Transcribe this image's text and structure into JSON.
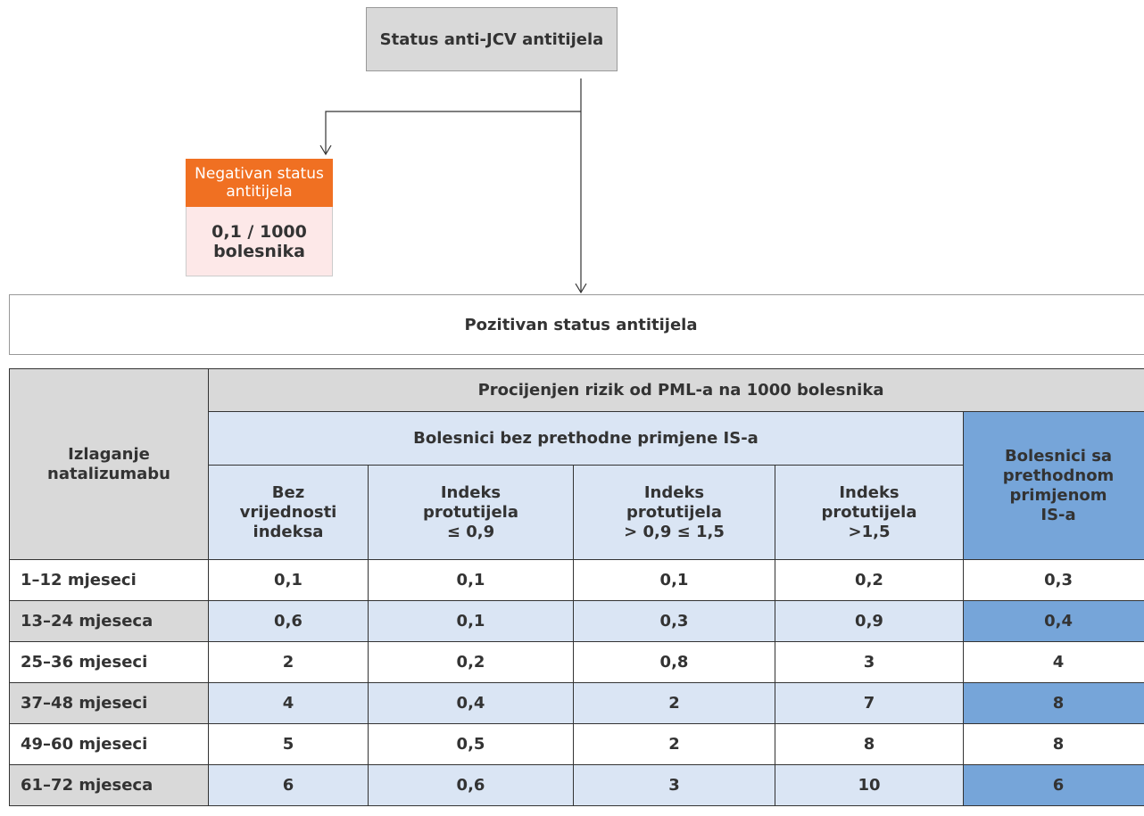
{
  "root": {
    "label": "Status anti-JCV antitijela"
  },
  "negative": {
    "label": "Negativan status antitijela",
    "risk": "0,1 / 1000 bolesnika"
  },
  "positive": {
    "label": "Pozitivan status antitijela"
  },
  "table": {
    "row_header": "Izlaganje\nnatalizumabu",
    "title": "Procijenjen rizik od PML-a na 1000 bolesnika",
    "group_no_is": "Bolesnici bez prethodne primjene IS-a",
    "group_is": "Bolesnici sa\nprethodnom\nprimjenom\nIS-a",
    "columns": [
      "Bez\nvrijednosti\nindeksa",
      "Indeks\nprotutijela\n≤ 0,9",
      "Indeks\nprotutijela\n> 0,9 ≤ 1,5",
      "Indeks\nprotutijela\n>1,5"
    ],
    "rows": [
      [
        "1–12 mjeseci",
        "0,1",
        "0,1",
        "0,1",
        "0,2",
        "0,3"
      ],
      [
        "13–24 mjeseca",
        "0,6",
        "0,1",
        "0,3",
        "0,9",
        "0,4"
      ],
      [
        "25–36 mjeseci",
        "2",
        "0,2",
        "0,8",
        "3",
        "4"
      ],
      [
        "37–48 mjeseci",
        "4",
        "0,4",
        "2",
        "7",
        "8"
      ],
      [
        "49–60 mjeseci",
        "5",
        "0,5",
        "2",
        "8",
        "8"
      ],
      [
        "61–72 mjeseca",
        "6",
        "0,6",
        "3",
        "10",
        "6"
      ]
    ]
  }
}
